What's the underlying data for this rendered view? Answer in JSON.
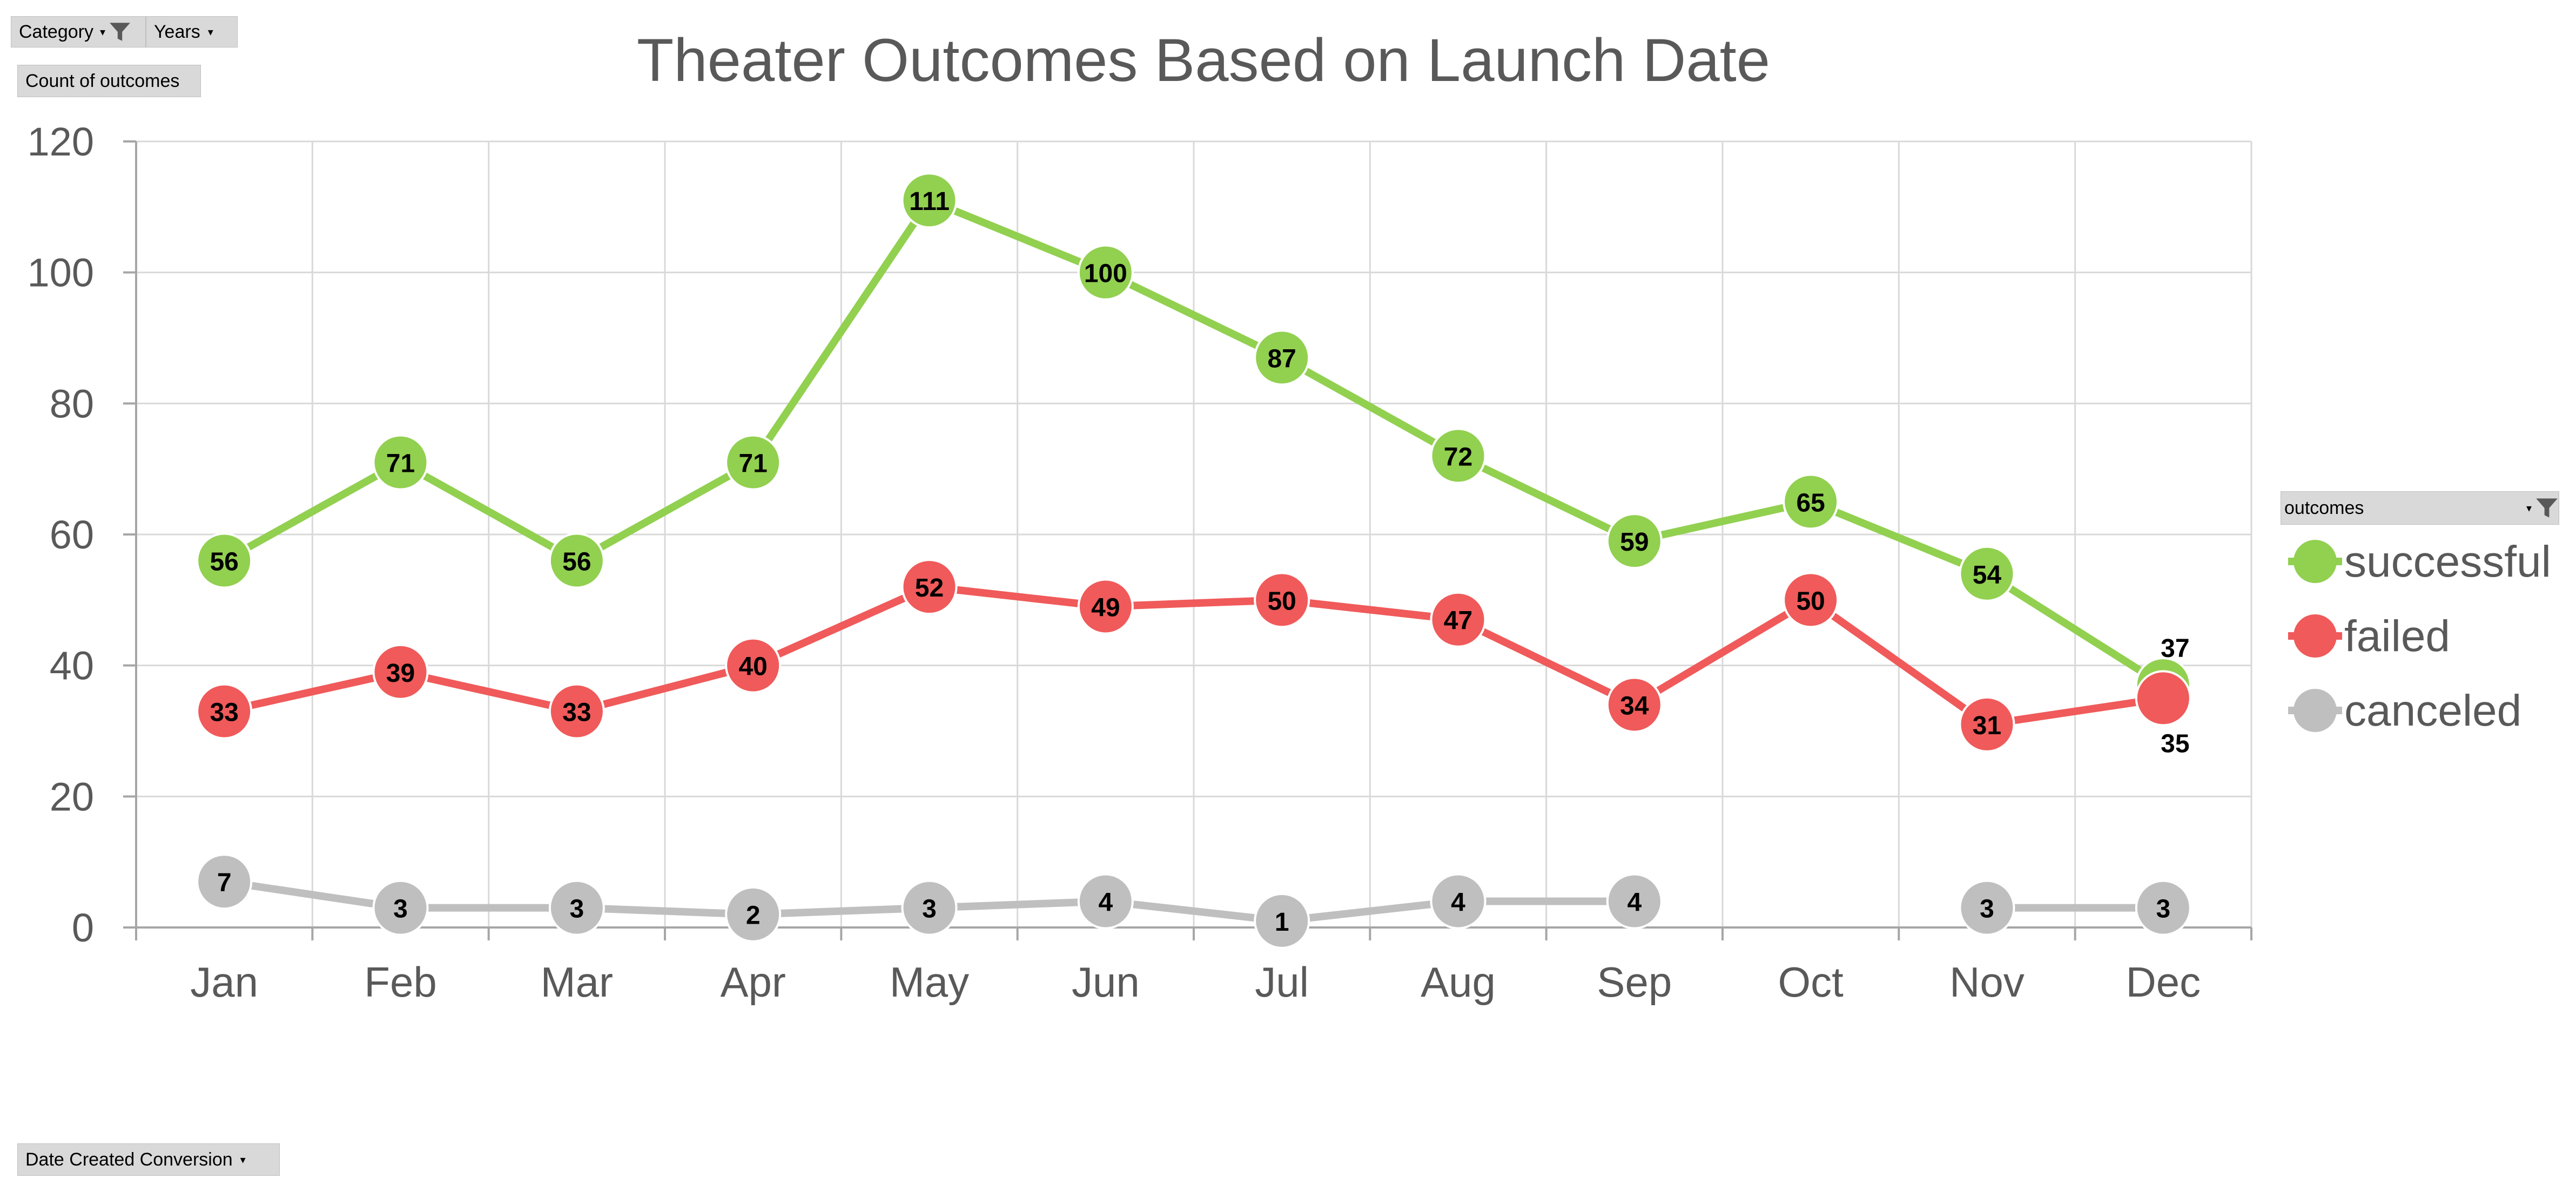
{
  "pivot": {
    "category_label": "Category",
    "years_label": "Years",
    "value_field_label": "Count of outcomes",
    "axis_field_label": "Date Created Conversion",
    "legend_field_label": "outcomes",
    "filter_icon": "filter-icon",
    "dropdown_icon": "chevron-down-icon"
  },
  "colors": {
    "successful": "#92d050",
    "failed": "#f05a5a",
    "canceled": "#bfbfbf",
    "grid": "#d9d9d9",
    "text": "#595959"
  },
  "chart_data": {
    "type": "line",
    "title": "Theater Outcomes Based on Launch Date",
    "xlabel": "",
    "ylabel": "",
    "categories": [
      "Jan",
      "Feb",
      "Mar",
      "Apr",
      "May",
      "Jun",
      "Jul",
      "Aug",
      "Sep",
      "Oct",
      "Nov",
      "Dec"
    ],
    "ylim": [
      0,
      120
    ],
    "yticks": [
      0,
      20,
      40,
      60,
      80,
      100,
      120
    ],
    "grid": true,
    "legend_position": "right",
    "series": [
      {
        "name": "successful",
        "values": [
          56,
          71,
          56,
          71,
          111,
          100,
          87,
          72,
          59,
          65,
          54,
          37
        ]
      },
      {
        "name": "failed",
        "values": [
          33,
          39,
          33,
          40,
          52,
          49,
          50,
          47,
          34,
          50,
          31,
          35
        ]
      },
      {
        "name": "canceled",
        "values": [
          7,
          3,
          3,
          2,
          3,
          4,
          1,
          4,
          4,
          null,
          3,
          3
        ]
      }
    ]
  }
}
